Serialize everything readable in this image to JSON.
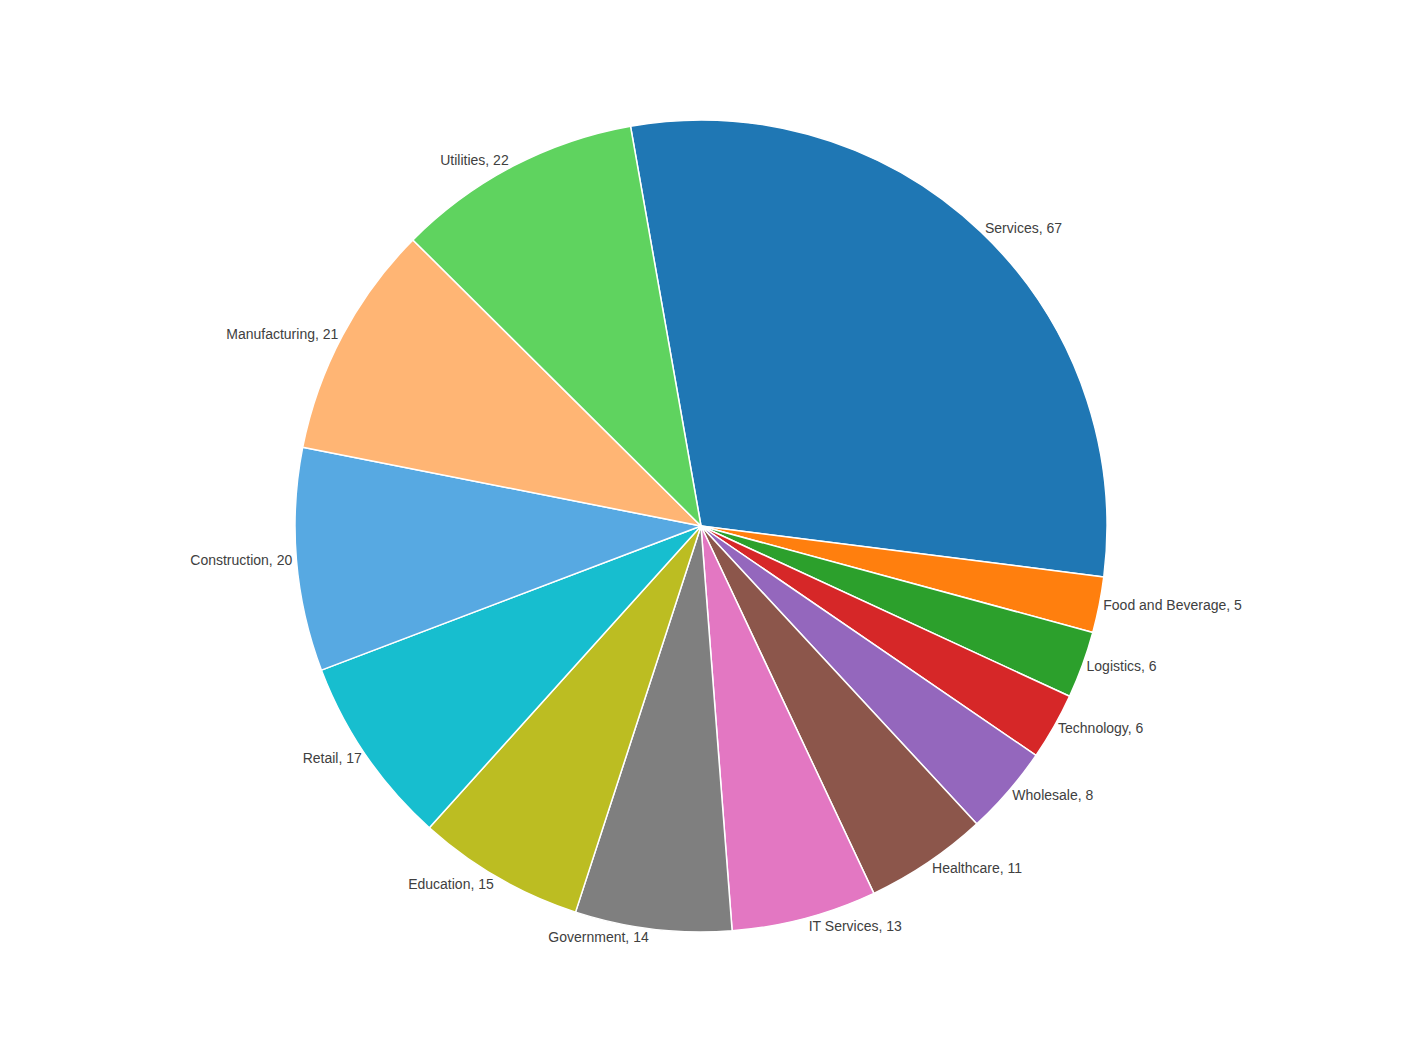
{
  "chart_data": {
    "type": "pie",
    "categories": [
      "Services",
      "Food and Beverage",
      "Logistics",
      "Technology",
      "Wholesale",
      "Healthcare",
      "IT Services",
      "Government",
      "Education",
      "Retail",
      "Construction",
      "Manufacturing",
      "Utilities"
    ],
    "values": [
      67,
      5,
      6,
      6,
      8,
      11,
      13,
      14,
      15,
      17,
      20,
      21,
      22
    ],
    "value_labels": [
      "Services, 67",
      "Food and Beverage, 5",
      "Logistics, 6",
      "Technology, 6",
      "Wholesale, 8",
      "Healthcare, 11",
      "IT Services, 13",
      "Government, 14",
      "Education, 15",
      "Retail, 17",
      "Construction, 20",
      "Manufacturing, 21",
      "Utilities, 22"
    ],
    "data_labels": true
  }
}
